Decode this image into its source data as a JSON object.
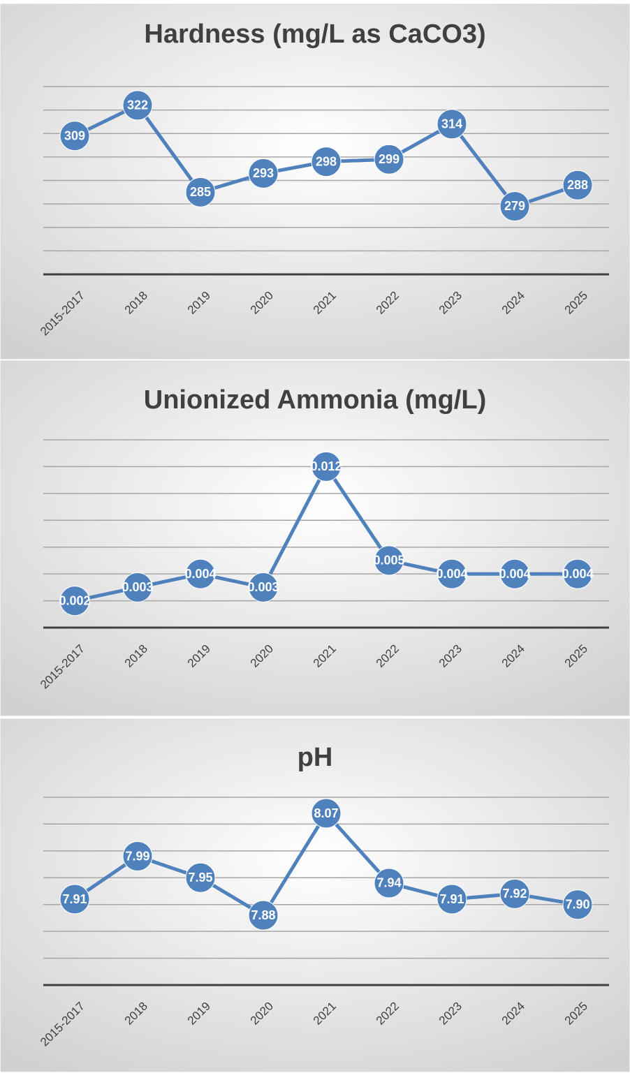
{
  "chart_data": [
    {
      "type": "line",
      "title": "Hardness (mg/L as CaCO3)",
      "categories": [
        "2015-2017",
        "2018",
        "2019",
        "2020",
        "2021",
        "2022",
        "2023",
        "2024",
        "2025"
      ],
      "series": [
        {
          "name": "Hardness",
          "color": "#4f81bd",
          "values": [
            309,
            322,
            285,
            293,
            298,
            299,
            314,
            279,
            288
          ]
        }
      ],
      "ylim": [
        250,
        330
      ],
      "yticks": [
        250,
        260,
        270,
        280,
        290,
        300,
        310,
        320,
        330
      ],
      "grid": true
    },
    {
      "type": "line",
      "title": "Unionized Ammonia (mg/L)",
      "categories": [
        "2015-2017",
        "2018",
        "2019",
        "2020",
        "2021",
        "2022",
        "2023",
        "2024",
        "2025"
      ],
      "series": [
        {
          "name": "Unionized Ammonia",
          "color": "#4f81bd",
          "values": [
            0.002,
            0.003,
            0.004,
            0.003,
            0.012,
            0.005,
            0.004,
            0.004,
            0.004
          ]
        }
      ],
      "ylim": [
        0,
        0.014
      ],
      "yticks": [
        0,
        0.002,
        0.004,
        0.006,
        0.008,
        0.01,
        0.012,
        0.014
      ],
      "grid": true
    },
    {
      "type": "line",
      "title": "pH",
      "categories": [
        "2015-2017",
        "2018",
        "2019",
        "2020",
        "2021",
        "2022",
        "2023",
        "2024",
        "2025"
      ],
      "series": [
        {
          "name": "pH",
          "color": "#4f81bd",
          "values": [
            7.91,
            7.99,
            7.95,
            7.88,
            8.07,
            7.94,
            7.91,
            7.92,
            7.9
          ],
          "value_labels": [
            "7.91",
            "7.99",
            "7.95",
            "7.88",
            "8.07",
            "7.94",
            "7.91",
            "7.92",
            "7.90"
          ]
        }
      ],
      "ylim": [
        7.75,
        8.1
      ],
      "yticks": [
        7.75,
        7.8,
        7.85,
        7.9,
        7.95,
        8,
        8.05,
        8.1
      ],
      "grid": true
    }
  ]
}
